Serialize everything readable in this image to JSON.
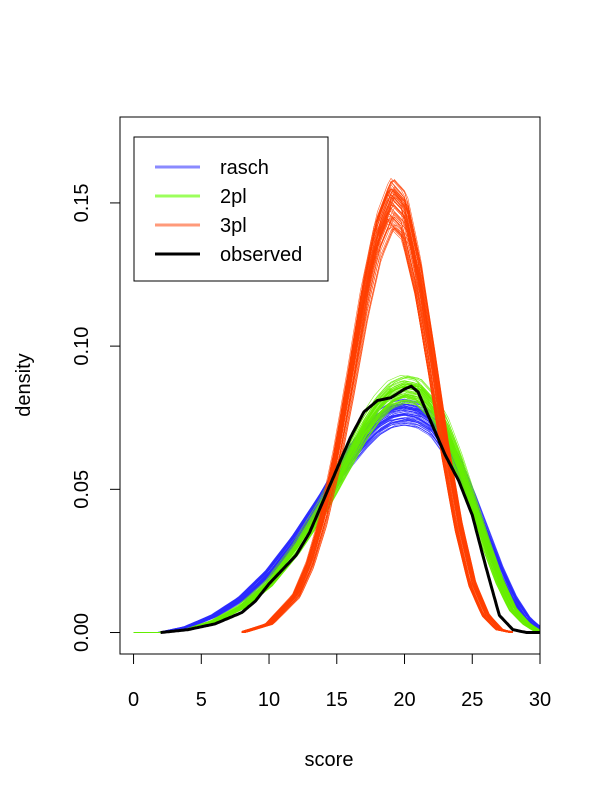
{
  "chart_data": {
    "type": "line",
    "xlabel": "score",
    "ylabel": "density",
    "xlim": [
      -1,
      30
    ],
    "ylim": [
      -0.0075,
      0.18
    ],
    "x_ticks": [
      0,
      5,
      10,
      15,
      20,
      25,
      30
    ],
    "x_tick_labels": [
      "0",
      "5",
      "10",
      "15",
      "20",
      "25",
      "30"
    ],
    "y_ticks": [
      0.0,
      0.05,
      0.1,
      0.15
    ],
    "y_tick_labels": [
      "0.00",
      "0.05",
      "0.10",
      "0.15"
    ],
    "legend_position": "top-left",
    "legend": [
      {
        "label": "rasch",
        "color": "#8a8aff"
      },
      {
        "label": "2pl",
        "color": "#9cff5c"
      },
      {
        "label": "3pl",
        "color": "#ff9a7a"
      },
      {
        "label": "observed",
        "color": "#000000"
      }
    ],
    "series": [
      {
        "name": "rasch",
        "color": "#2b2bff",
        "simulated_draws": true,
        "x": [
          0,
          2,
          4,
          6,
          8,
          10,
          12,
          14,
          15,
          16,
          17,
          18,
          19,
          20,
          21,
          22,
          23,
          24,
          25,
          26,
          27,
          28,
          29,
          30
        ],
        "y": [
          0.0,
          0.0,
          0.002,
          0.006,
          0.012,
          0.021,
          0.033,
          0.047,
          0.055,
          0.062,
          0.068,
          0.073,
          0.076,
          0.077,
          0.076,
          0.073,
          0.066,
          0.057,
          0.046,
          0.034,
          0.022,
          0.012,
          0.005,
          0.001
        ]
      },
      {
        "name": "2pl",
        "color": "#66ee00",
        "simulated_draws": true,
        "x": [
          0,
          2,
          4,
          6,
          8,
          10,
          12,
          14,
          15,
          16,
          17,
          18,
          19,
          20,
          21,
          22,
          23,
          24,
          25,
          26,
          27,
          28,
          29,
          30
        ],
        "y": [
          0.0,
          0.0,
          0.001,
          0.004,
          0.009,
          0.017,
          0.029,
          0.044,
          0.053,
          0.062,
          0.071,
          0.078,
          0.083,
          0.085,
          0.084,
          0.079,
          0.071,
          0.059,
          0.045,
          0.031,
          0.018,
          0.008,
          0.003,
          0.0
        ]
      },
      {
        "name": "3pl",
        "color": "#ff4000",
        "simulated_draws": true,
        "x": [
          8,
          10,
          12,
          13,
          14,
          15,
          16,
          17,
          18,
          19,
          20,
          21,
          22,
          23,
          24,
          25,
          26,
          27,
          28
        ],
        "y": [
          0.0,
          0.003,
          0.013,
          0.024,
          0.04,
          0.062,
          0.088,
          0.116,
          0.138,
          0.15,
          0.145,
          0.124,
          0.095,
          0.064,
          0.037,
          0.017,
          0.006,
          0.001,
          0.0
        ]
      },
      {
        "name": "observed",
        "color": "#000000",
        "x": [
          2,
          4,
          6,
          8,
          9,
          10,
          11,
          12,
          13,
          14,
          15,
          16,
          17,
          18,
          19,
          20,
          20.5,
          21,
          22,
          23,
          24,
          25,
          26,
          27,
          28,
          29,
          30
        ],
        "y": [
          0.0,
          0.001,
          0.003,
          0.007,
          0.011,
          0.017,
          0.022,
          0.027,
          0.035,
          0.046,
          0.057,
          0.068,
          0.077,
          0.081,
          0.082,
          0.085,
          0.086,
          0.084,
          0.073,
          0.062,
          0.053,
          0.041,
          0.023,
          0.006,
          0.001,
          0.0,
          0.0
        ]
      }
    ]
  }
}
